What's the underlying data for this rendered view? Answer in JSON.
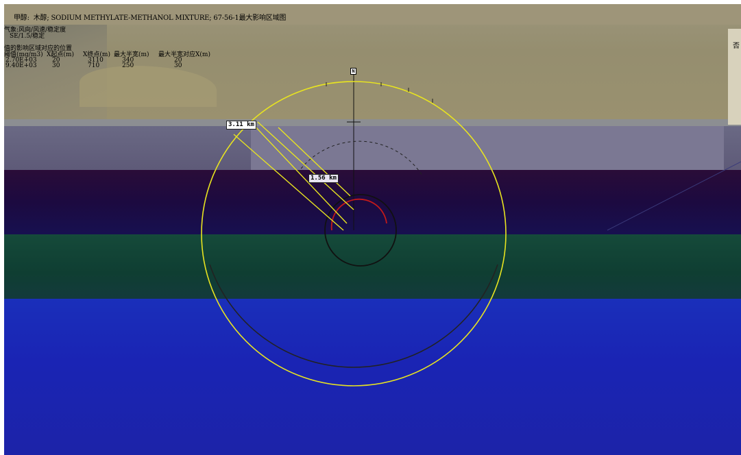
{
  "title": "甲醇:  木醇; SODIUM METHYLATE-METHANOL MIXTURE; 67-56-1最大影响区域图",
  "weather": {
    "label": "气象:风向/风速/稳定度",
    "value": "SE/1.5/稳定"
  },
  "impact_table": {
    "heading": "值的影响区域对应的位置",
    "headers": [
      "阈值(mg/m3)",
      "X起点(m)",
      "X终点(m)",
      "最大半宽(m)",
      "最大半宽对应X(m)"
    ],
    "rows": [
      [
        "2.70E+03",
        "20",
        "3110",
        "340",
        "20"
      ],
      [
        "9.40E+03",
        "30",
        "710",
        "250",
        "30"
      ]
    ]
  },
  "map": {
    "north_label": "N",
    "ring_labels": [
      "3.11 km",
      "1.56 km"
    ],
    "right_edge_text": "否",
    "colors": {
      "outer_ring": "#e8e420",
      "inner_ring": "#111111",
      "plume_small": "#c41a1a",
      "sea": "#9a9272",
      "land": "#6f6f8a",
      "band_dark": "#1a0a3c",
      "band_green": "#123f30",
      "band_blue": "#1a22b8"
    }
  }
}
